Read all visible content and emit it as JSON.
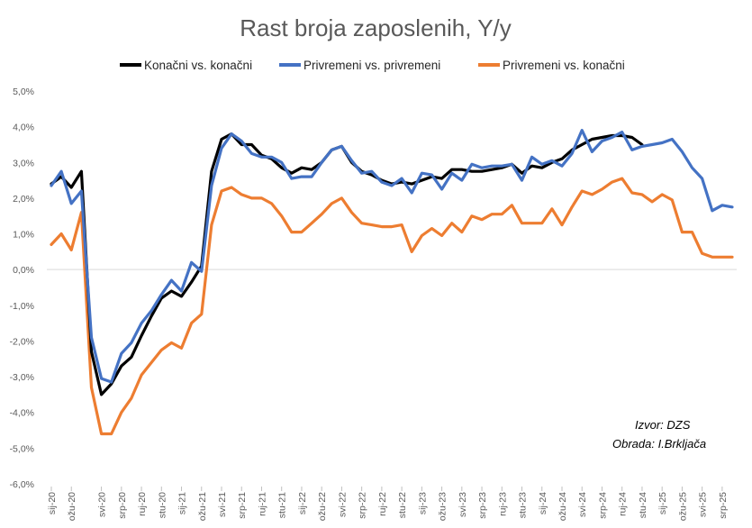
{
  "chart_data": {
    "type": "line",
    "title": "Rast broja zaposlenih, Y/y",
    "ylim": [
      -6,
      5
    ],
    "yticks": [
      -6,
      -5,
      -4,
      -3,
      -2,
      -1,
      0,
      1,
      2,
      3,
      4,
      5
    ],
    "ytick_labels": [
      "-6,0%",
      "-5,0%",
      "-4,0%",
      "-3,0%",
      "-2,0%",
      "-1,0%",
      "0,0%",
      "1,0%",
      "2,0%",
      "3,0%",
      "4,0%",
      "5,0%"
    ],
    "x_tick_labels": [
      {
        "i": 0,
        "label": "sij-20"
      },
      {
        "i": 2,
        "label": "ožu-20"
      },
      {
        "i": 5,
        "label": "svi-20"
      },
      {
        "i": 7,
        "label": "srp-20"
      },
      {
        "i": 9,
        "label": "ruj-20"
      },
      {
        "i": 11,
        "label": "stu-20"
      },
      {
        "i": 13,
        "label": "sij-21"
      },
      {
        "i": 15,
        "label": "ožu-21"
      },
      {
        "i": 17,
        "label": "svi-21"
      },
      {
        "i": 19,
        "label": "srp-21"
      },
      {
        "i": 21,
        "label": "ruj-21"
      },
      {
        "i": 23,
        "label": "stu-21"
      },
      {
        "i": 25,
        "label": "sij-22"
      },
      {
        "i": 27,
        "label": "ožu-22"
      },
      {
        "i": 29,
        "label": "svi-22"
      },
      {
        "i": 31,
        "label": "srp-22"
      },
      {
        "i": 33,
        "label": "ruj-22"
      },
      {
        "i": 35,
        "label": "stu-22"
      },
      {
        "i": 37,
        "label": "sij-23"
      },
      {
        "i": 39,
        "label": "ožu-23"
      },
      {
        "i": 41,
        "label": "svi-23"
      },
      {
        "i": 43,
        "label": "srp-23"
      },
      {
        "i": 45,
        "label": "ruj-23"
      },
      {
        "i": 47,
        "label": "stu-23"
      },
      {
        "i": 49,
        "label": "sij-24"
      },
      {
        "i": 51,
        "label": "ožu-24"
      },
      {
        "i": 53,
        "label": "svi-24"
      },
      {
        "i": 55,
        "label": "srp-24"
      },
      {
        "i": 57,
        "label": "ruj-24"
      },
      {
        "i": 59,
        "label": "stu-24"
      },
      {
        "i": 61,
        "label": "sij-25"
      },
      {
        "i": 63,
        "label": "ožu-25"
      },
      {
        "i": 65,
        "label": "svi-25"
      },
      {
        "i": 67,
        "label": "srp-25"
      }
    ],
    "series": [
      {
        "name": "Konačni vs. konačni",
        "color": "#000000",
        "values": [
          2.4,
          2.6,
          2.3,
          2.75,
          -2.3,
          -3.5,
          -3.2,
          -2.7,
          -2.45,
          -1.85,
          -1.3,
          -0.8,
          -0.6,
          -0.75,
          -0.35,
          0.1,
          2.75,
          3.65,
          3.8,
          3.5,
          3.5,
          3.2,
          3.1,
          2.85,
          2.7,
          2.85,
          2.8,
          3.0,
          3.35,
          3.45,
          3.0,
          2.75,
          2.65,
          2.5,
          2.4,
          2.45,
          2.4,
          2.5,
          2.6,
          2.55,
          2.8,
          2.8,
          2.75,
          2.75,
          2.8,
          2.85,
          2.95,
          2.7,
          2.9,
          2.85,
          3.0,
          3.1,
          3.35,
          3.5,
          3.65,
          3.7,
          3.75,
          3.75,
          3.7,
          3.5,
          null,
          null,
          null,
          null,
          null,
          null,
          null,
          null,
          null
        ]
      },
      {
        "name": "Privremeni vs. privremeni",
        "color": "#4472C4",
        "values": [
          2.35,
          2.75,
          1.85,
          2.2,
          -1.9,
          -3.05,
          -3.15,
          -2.35,
          -2.05,
          -1.5,
          -1.15,
          -0.7,
          -0.3,
          -0.6,
          0.2,
          -0.05,
          2.35,
          3.4,
          3.8,
          3.6,
          3.25,
          3.15,
          3.15,
          3.0,
          2.55,
          2.6,
          2.6,
          3.0,
          3.35,
          3.45,
          3.05,
          2.7,
          2.75,
          2.45,
          2.35,
          2.55,
          2.15,
          2.7,
          2.65,
          2.25,
          2.7,
          2.5,
          2.95,
          2.85,
          2.9,
          2.9,
          2.95,
          2.5,
          3.15,
          2.95,
          3.05,
          2.9,
          3.25,
          3.9,
          3.3,
          3.6,
          3.7,
          3.85,
          3.35,
          3.45,
          3.5,
          3.55,
          3.65,
          3.3,
          2.85,
          2.55,
          1.65,
          1.8,
          1.75
        ]
      },
      {
        "name": "Privremeni vs. konačni",
        "color": "#ED7D31",
        "values": [
          0.7,
          1.0,
          0.55,
          1.6,
          -3.3,
          -4.6,
          -4.6,
          -4.0,
          -3.6,
          -2.95,
          -2.6,
          -2.25,
          -2.05,
          -2.2,
          -1.5,
          -1.25,
          1.25,
          2.2,
          2.3,
          2.1,
          2.0,
          2.0,
          1.85,
          1.5,
          1.05,
          1.05,
          1.3,
          1.55,
          1.85,
          2.0,
          1.6,
          1.3,
          1.25,
          1.2,
          1.2,
          1.25,
          0.5,
          0.95,
          1.15,
          0.95,
          1.3,
          1.05,
          1.5,
          1.4,
          1.55,
          1.55,
          1.8,
          1.3,
          1.3,
          1.3,
          1.7,
          1.25,
          1.75,
          2.2,
          2.1,
          2.25,
          2.45,
          2.55,
          2.15,
          2.1,
          1.9,
          2.1,
          1.95,
          1.05,
          1.05,
          0.45,
          0.35,
          0.35,
          0.35
        ]
      }
    ]
  },
  "source_line1": "Izvor: DZS",
  "source_line2": "Obrada: I.Brkljača"
}
